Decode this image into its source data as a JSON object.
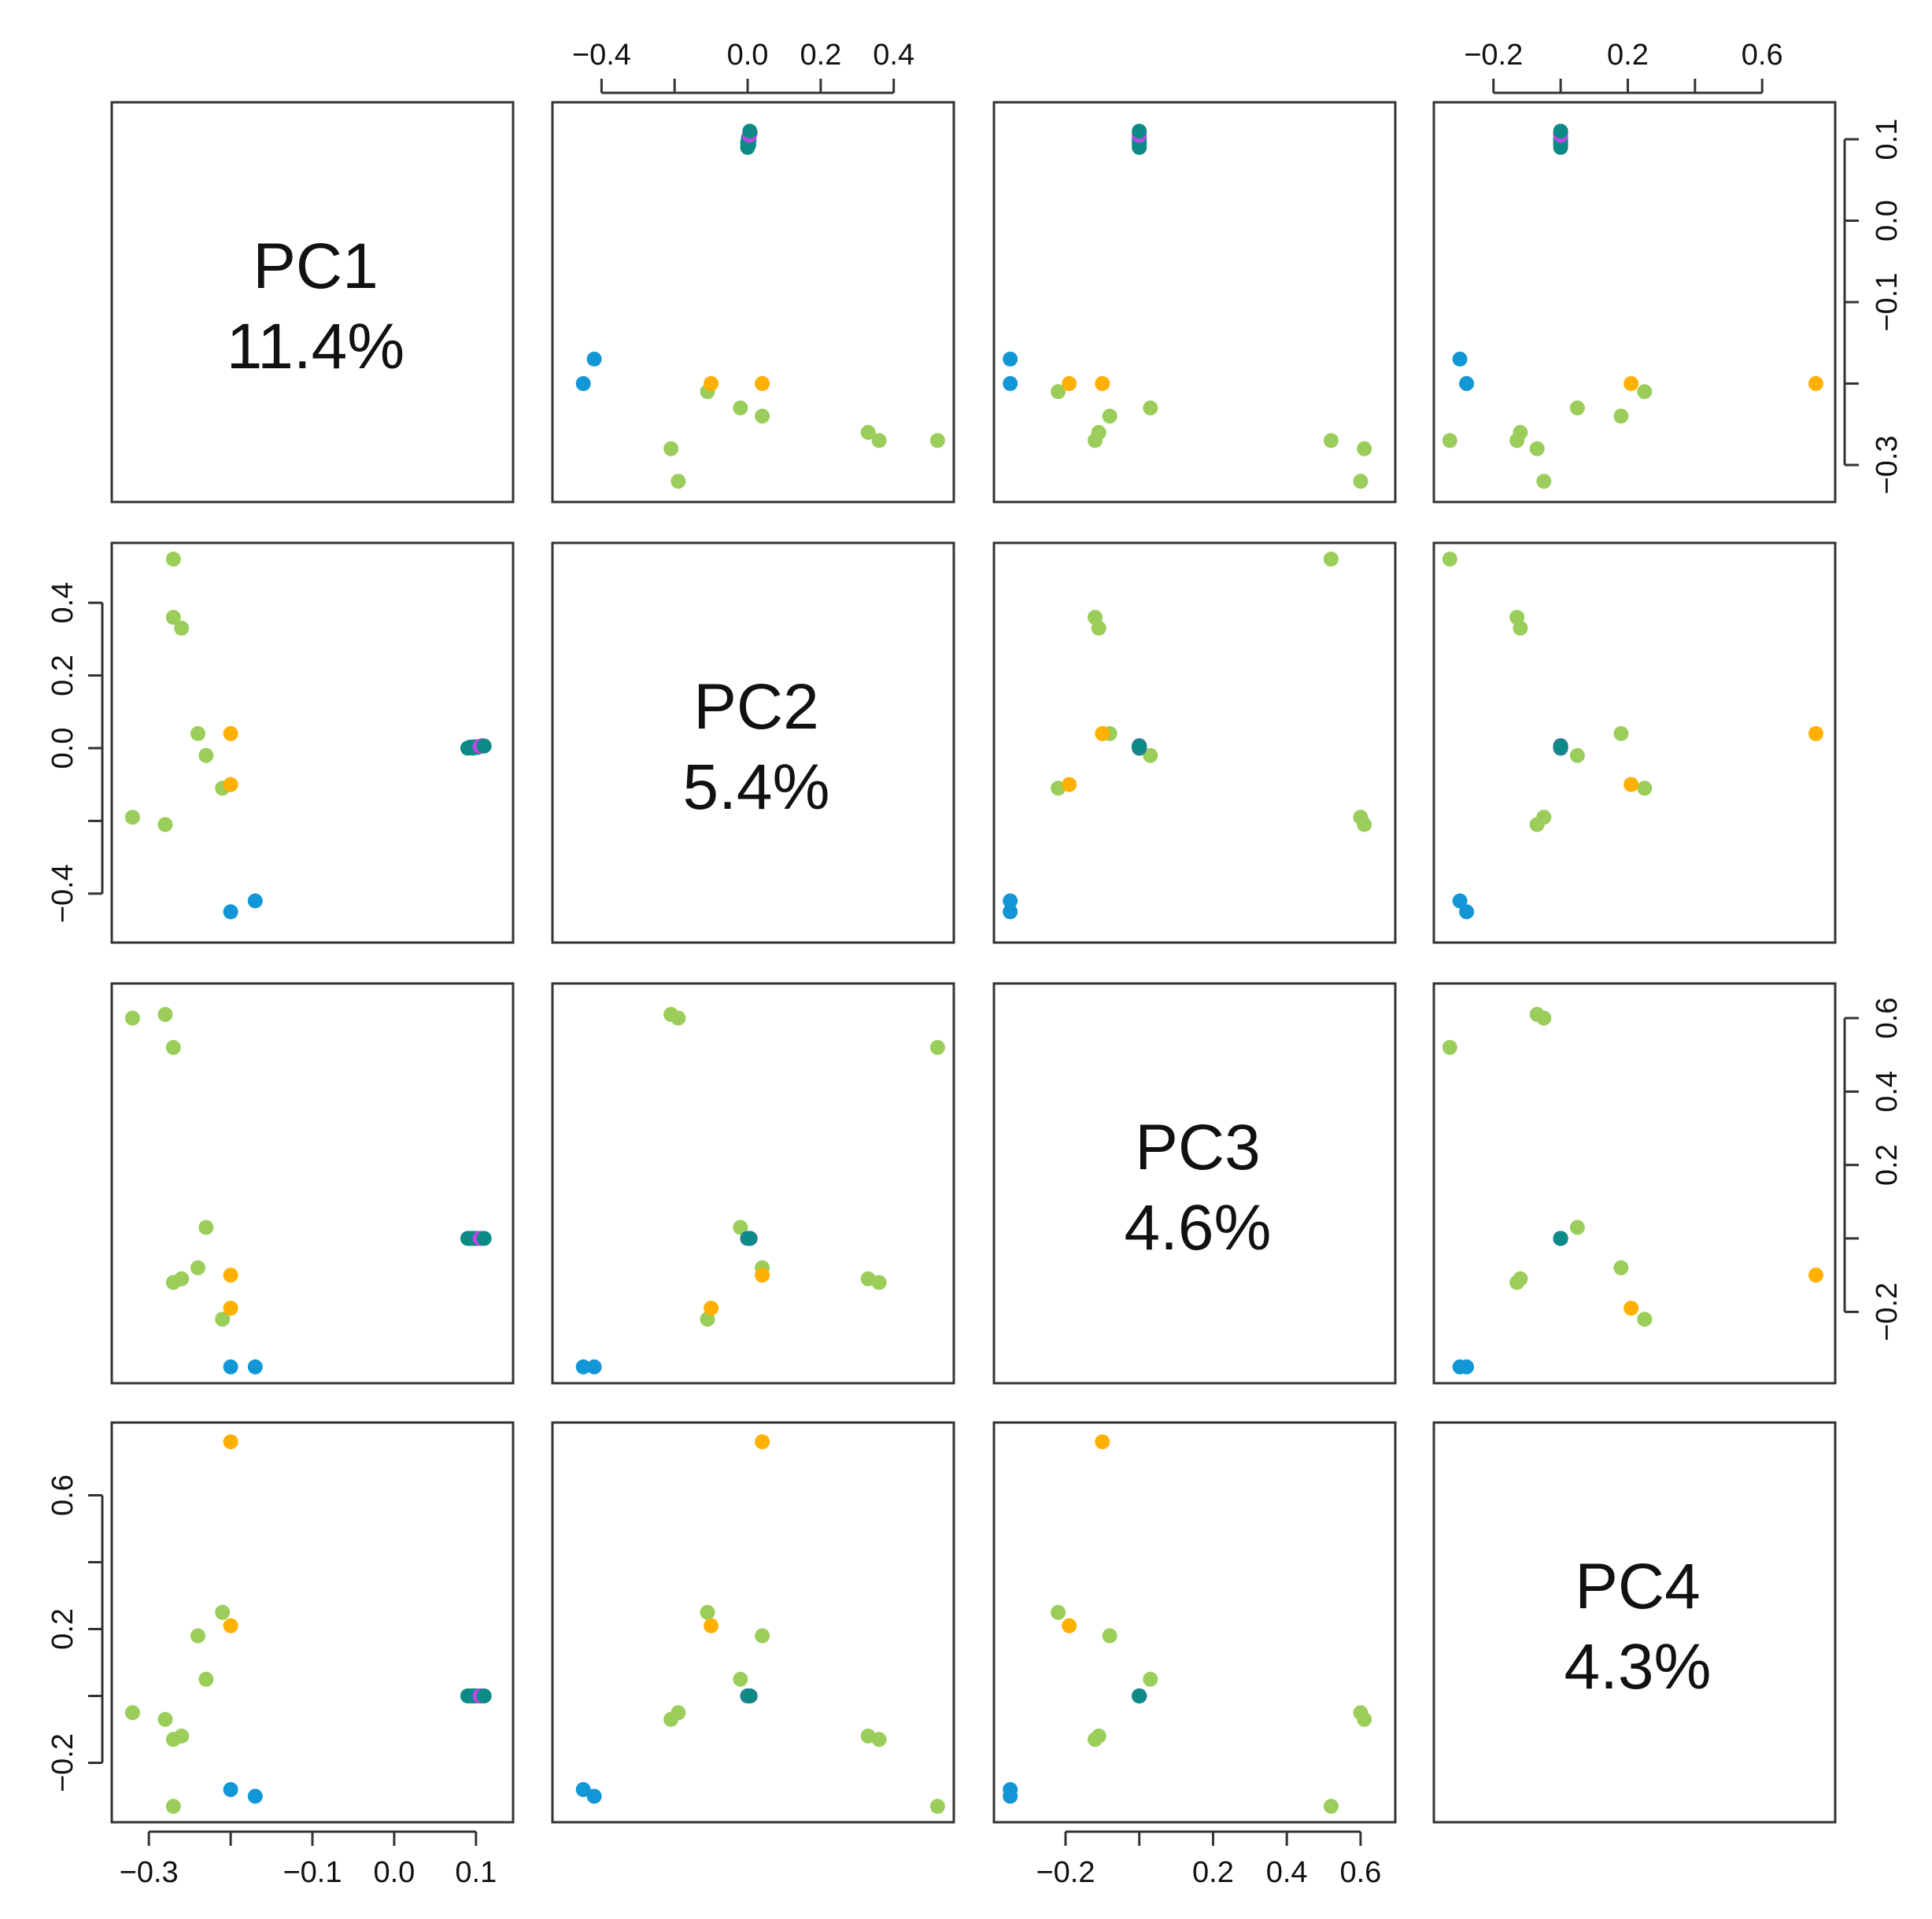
{
  "chart_data": {
    "type": "scatter-matrix",
    "title": "",
    "variables": [
      {
        "name": "PC1",
        "percent": "11.4%",
        "range": [
          -0.33,
          0.13
        ]
      },
      {
        "name": "PC2",
        "percent": "5.4%",
        "range": [
          -0.5,
          0.53
        ]
      },
      {
        "name": "PC3",
        "percent": "4.6%",
        "range": [
          -0.36,
          0.66
        ]
      },
      {
        "name": "PC4",
        "percent": "4.3%",
        "range": [
          -0.34,
          0.78
        ]
      }
    ],
    "ticks": [
      {
        "values": [
          -0.3,
          -0.1,
          0.0,
          0.1
        ],
        "labels": [
          "-0.3",
          "-0.1",
          "0.0",
          "0.1"
        ],
        "minor": [
          -0.2
        ]
      },
      {
        "values": [
          -0.4,
          0.0,
          0.2,
          0.4
        ],
        "labels": [
          "-0.4",
          "0.0",
          "0.2",
          "0.4"
        ],
        "minor": [
          -0.2
        ]
      },
      {
        "values": [
          -0.2,
          0.2,
          0.4,
          0.6
        ],
        "labels": [
          "-0.2",
          "0.2",
          "0.4",
          "0.6"
        ],
        "minor": [
          0.0
        ]
      },
      {
        "values": [
          -0.2,
          0.2,
          0.6
        ],
        "labels": [
          "-0.2",
          "0.2",
          "0.6"
        ],
        "minor": [
          0.0,
          0.4
        ]
      }
    ],
    "colors": {
      "green": "#9ACD5A",
      "orange": "#FFB000",
      "blue": "#1296D6",
      "teal": "#0C8A86",
      "purple": "#C046E8"
    },
    "points": [
      {
        "group": "green",
        "pc1": -0.27,
        "pc2": 0.52,
        "pc3": 0.52,
        "pc4": -0.33
      },
      {
        "group": "green",
        "pc1": -0.27,
        "pc2": 0.36,
        "pc3": -0.12,
        "pc4": -0.13
      },
      {
        "group": "green",
        "pc1": -0.26,
        "pc2": 0.33,
        "pc3": -0.11,
        "pc4": -0.12
      },
      {
        "group": "green",
        "pc1": -0.32,
        "pc2": -0.19,
        "pc3": 0.6,
        "pc4": -0.05
      },
      {
        "group": "green",
        "pc1": -0.28,
        "pc2": -0.21,
        "pc3": 0.61,
        "pc4": -0.07
      },
      {
        "group": "green",
        "pc1": -0.24,
        "pc2": 0.04,
        "pc3": -0.08,
        "pc4": 0.18
      },
      {
        "group": "green",
        "pc1": -0.23,
        "pc2": -0.02,
        "pc3": 0.03,
        "pc4": 0.05
      },
      {
        "group": "green",
        "pc1": -0.21,
        "pc2": -0.11,
        "pc3": -0.22,
        "pc4": 0.25
      },
      {
        "group": "orange",
        "pc1": -0.2,
        "pc2": 0.04,
        "pc3": -0.1,
        "pc4": 0.76
      },
      {
        "group": "orange",
        "pc1": -0.2,
        "pc2": -0.1,
        "pc3": -0.19,
        "pc4": 0.21
      },
      {
        "group": "blue",
        "pc1": -0.2,
        "pc2": -0.45,
        "pc3": -0.35,
        "pc4": -0.28
      },
      {
        "group": "blue",
        "pc1": -0.17,
        "pc2": -0.42,
        "pc3": -0.35,
        "pc4": -0.3
      },
      {
        "group": "teal",
        "pc1": 0.09,
        "pc2": 0.0,
        "pc3": 0.0,
        "pc4": 0.0
      },
      {
        "group": "teal",
        "pc1": 0.093,
        "pc2": 0.003,
        "pc3": 0.0,
        "pc4": 0.0
      },
      {
        "group": "teal",
        "pc1": 0.096,
        "pc2": 0.0,
        "pc3": 0.0,
        "pc4": 0.0
      },
      {
        "group": "teal",
        "pc1": 0.099,
        "pc2": 0.004,
        "pc3": 0.0,
        "pc4": 0.0
      },
      {
        "group": "teal",
        "pc1": 0.102,
        "pc2": 0.002,
        "pc3": 0.0,
        "pc4": 0.0
      },
      {
        "group": "purple",
        "pc1": 0.105,
        "pc2": 0.005,
        "pc3": 0.0,
        "pc4": 0.0
      },
      {
        "group": "purple",
        "pc1": 0.108,
        "pc2": 0.007,
        "pc3": 0.0,
        "pc4": 0.0
      },
      {
        "group": "teal",
        "pc1": 0.11,
        "pc2": 0.006,
        "pc3": 0.0,
        "pc4": 0.0
      }
    ],
    "axis_placement": {
      "bottom": [
        0,
        2
      ],
      "top": [
        1,
        3
      ],
      "left": [
        1,
        3
      ],
      "right": [
        0,
        2
      ]
    }
  }
}
